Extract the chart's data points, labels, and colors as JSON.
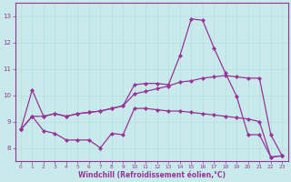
{
  "xlabel": "Windchill (Refroidissement éolien,°C)",
  "bg_color": "#c8eaea",
  "line_color": "#993399",
  "grid_color": "#b8dede",
  "ylim": [
    7.5,
    13.5
  ],
  "xlim": [
    -0.5,
    23.5
  ],
  "yticks": [
    8,
    9,
    10,
    11,
    12,
    13
  ],
  "xticks": [
    0,
    1,
    2,
    3,
    4,
    5,
    6,
    7,
    8,
    9,
    10,
    11,
    12,
    13,
    14,
    15,
    16,
    17,
    18,
    19,
    20,
    21,
    22,
    23
  ],
  "line1_x": [
    0,
    1,
    2,
    3,
    4,
    5,
    6,
    7,
    8,
    9,
    10,
    11,
    12,
    13,
    14,
    15,
    16,
    17,
    18,
    19,
    20,
    21,
    22,
    23
  ],
  "line1_y": [
    8.7,
    10.2,
    9.2,
    9.3,
    9.2,
    9.3,
    9.35,
    9.4,
    9.5,
    9.6,
    10.05,
    10.15,
    10.25,
    10.35,
    10.5,
    10.55,
    10.65,
    10.7,
    10.75,
    10.7,
    10.65,
    10.65,
    8.5,
    7.7
  ],
  "line2_x": [
    0,
    1,
    2,
    3,
    4,
    5,
    6,
    7,
    8,
    9,
    10,
    11,
    12,
    13,
    14,
    15,
    16,
    17,
    18,
    19,
    20,
    21,
    22,
    23
  ],
  "line2_y": [
    8.7,
    9.2,
    9.2,
    9.3,
    9.2,
    9.3,
    9.35,
    9.4,
    9.5,
    9.6,
    10.4,
    10.45,
    10.45,
    10.4,
    11.5,
    12.9,
    12.85,
    11.8,
    10.85,
    9.95,
    8.5,
    8.5,
    7.65,
    7.7
  ],
  "line3_x": [
    0,
    1,
    2,
    3,
    4,
    5,
    6,
    7,
    8,
    9,
    10,
    11,
    12,
    13,
    14,
    15,
    16,
    17,
    18,
    19,
    20,
    21,
    22,
    23
  ],
  "line3_y": [
    8.7,
    9.2,
    8.65,
    8.55,
    8.3,
    8.3,
    8.3,
    8.0,
    8.55,
    8.5,
    9.5,
    9.5,
    9.45,
    9.4,
    9.4,
    9.35,
    9.3,
    9.25,
    9.2,
    9.15,
    9.1,
    9.0,
    7.65,
    7.7
  ]
}
